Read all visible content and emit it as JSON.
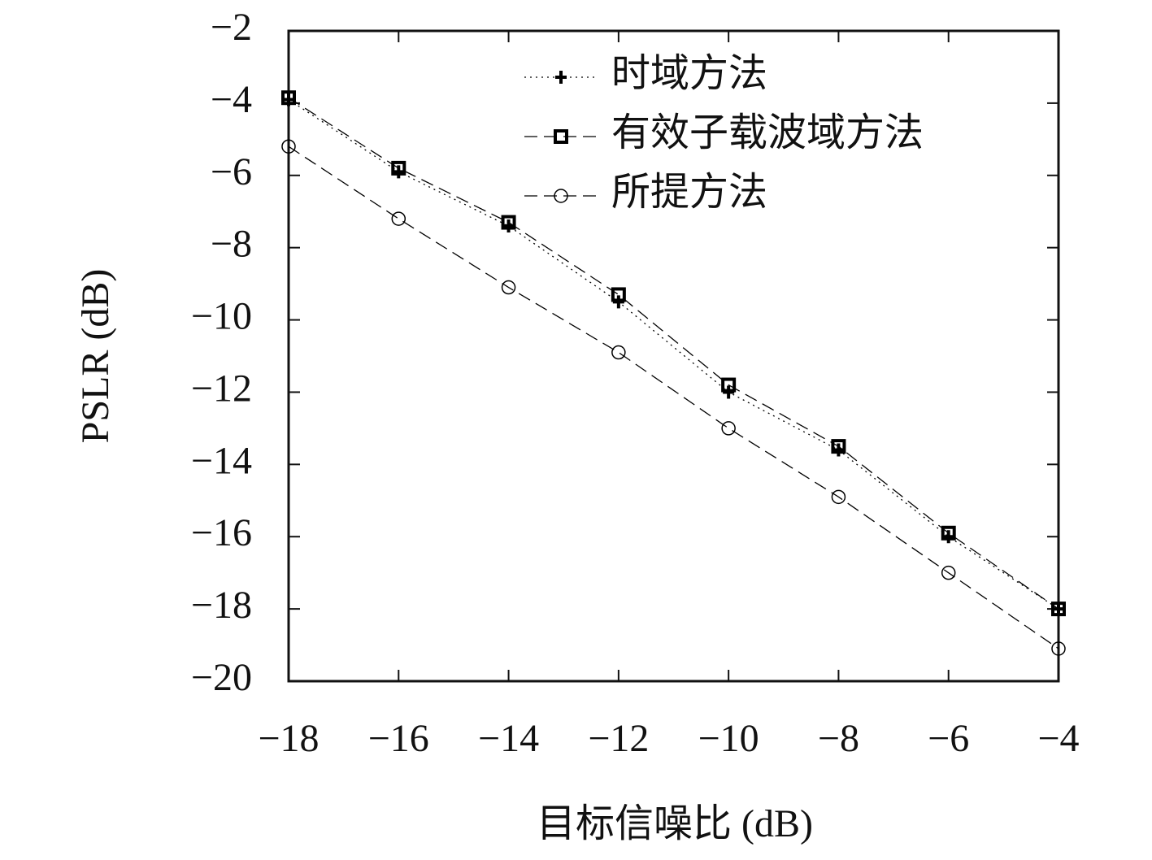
{
  "chart_data": {
    "type": "line",
    "xlabel": "目标信噪比 (dB)",
    "ylabel": "PSLR (dB)",
    "x": [
      -18,
      -16,
      -14,
      -12,
      -10,
      -8,
      -6,
      -4
    ],
    "series": [
      {
        "name": "时域方法",
        "color": "#000000",
        "marker": "plus",
        "linestyle": "dotted",
        "values": [
          -3.9,
          -5.9,
          -7.4,
          -9.5,
          -12.0,
          -13.6,
          -16.0,
          -18.0
        ]
      },
      {
        "name": "有效子载波域方法",
        "color": "#000000",
        "marker": "square",
        "linestyle": "dashed",
        "values": [
          -3.85,
          -5.8,
          -7.3,
          -9.3,
          -11.8,
          -13.5,
          -15.9,
          -18.0
        ]
      },
      {
        "name": "所提方法",
        "color": "#000000",
        "marker": "circle",
        "linestyle": "dashed",
        "values": [
          -5.2,
          -7.2,
          -9.1,
          -10.9,
          -13.0,
          -14.9,
          -17.0,
          -19.1
        ]
      }
    ],
    "xlim": [
      -18,
      -4
    ],
    "ylim": [
      -20,
      -2
    ],
    "xticks": [
      {
        "value": -18,
        "label": "−18"
      },
      {
        "value": -16,
        "label": "−16"
      },
      {
        "value": -14,
        "label": "−14"
      },
      {
        "value": -12,
        "label": "−12"
      },
      {
        "value": -10,
        "label": "−10"
      },
      {
        "value": -8,
        "label": "−8"
      },
      {
        "value": -6,
        "label": "−6"
      },
      {
        "value": -4,
        "label": "−4"
      }
    ],
    "yticks": [
      {
        "value": -20,
        "label": "−20"
      },
      {
        "value": -18,
        "label": "−18"
      },
      {
        "value": -16,
        "label": "−16"
      },
      {
        "value": -14,
        "label": "−14"
      },
      {
        "value": -12,
        "label": "−12"
      },
      {
        "value": -10,
        "label": "−10"
      },
      {
        "value": -8,
        "label": "−8"
      },
      {
        "value": -6,
        "label": "−6"
      },
      {
        "value": -4,
        "label": "−4"
      },
      {
        "value": -2,
        "label": "−2"
      }
    ],
    "legend": "upper-right"
  }
}
